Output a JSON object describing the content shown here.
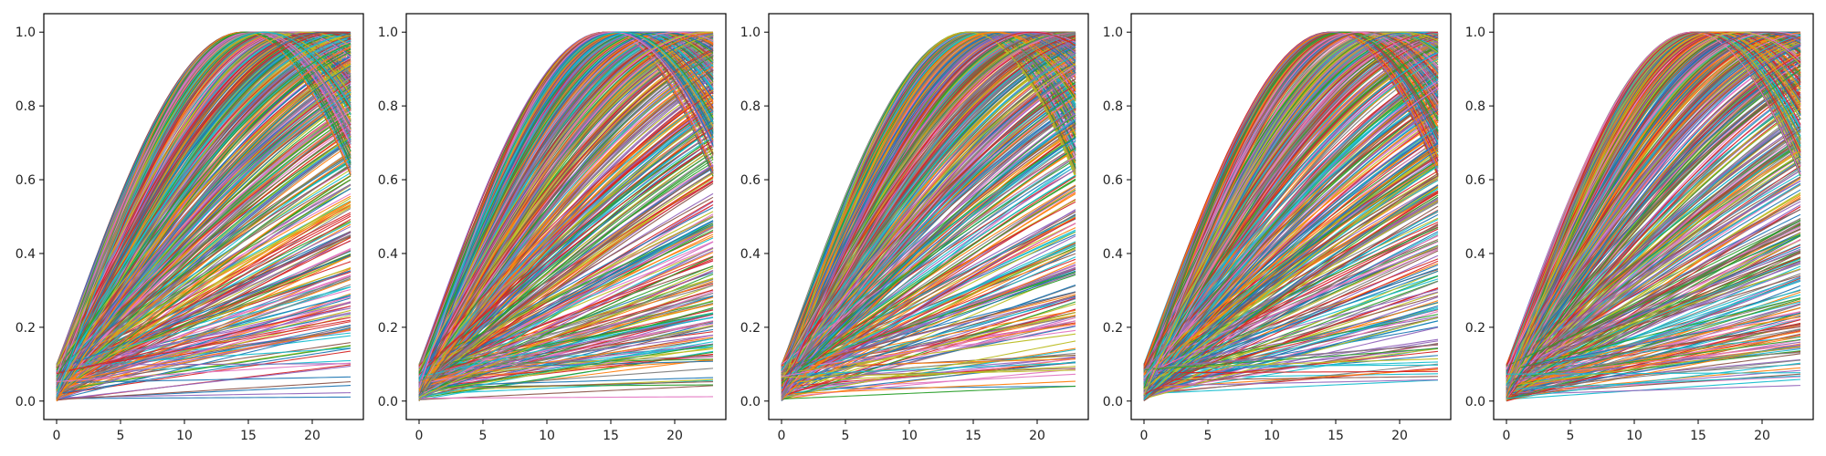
{
  "chart_data": {
    "type": "line",
    "panel_count": 5,
    "curve_model": "y = y0 + (1 - y0) * sin(min(pi/2 * x / peak_x, pi - ...)) ; many series per panel",
    "panels": [
      {
        "xlim": [
          -1,
          24
        ],
        "ylim": [
          -0.05,
          1.05
        ],
        "x_ticks": [
          0,
          5,
          10,
          15,
          20
        ],
        "x_tick_labels": [
          "0",
          "5",
          "10",
          "15",
          "20"
        ],
        "y_ticks": [
          0.0,
          0.2,
          0.4,
          0.6,
          0.8,
          1.0
        ],
        "y_tick_labels": [
          "0.0",
          "0.2",
          "0.4",
          "0.6",
          "0.8",
          "1.0"
        ],
        "x_range": [
          0,
          23
        ],
        "series_count": 600,
        "y_start_range": [
          0.0,
          0.1
        ],
        "min_peak_x": 14.5,
        "seed": 11
      },
      {
        "xlim": [
          -1,
          24
        ],
        "ylim": [
          -0.05,
          1.05
        ],
        "x_ticks": [
          0,
          5,
          10,
          15,
          20
        ],
        "x_tick_labels": [
          "0",
          "5",
          "10",
          "15",
          "20"
        ],
        "y_ticks": [
          0.0,
          0.2,
          0.4,
          0.6,
          0.8,
          1.0
        ],
        "y_tick_labels": [
          "0.0",
          "0.2",
          "0.4",
          "0.6",
          "0.8",
          "1.0"
        ],
        "x_range": [
          0,
          23
        ],
        "series_count": 600,
        "y_start_range": [
          0.0,
          0.1
        ],
        "min_peak_x": 14.5,
        "seed": 23
      },
      {
        "xlim": [
          -1,
          24
        ],
        "ylim": [
          -0.05,
          1.05
        ],
        "x_ticks": [
          0,
          5,
          10,
          15,
          20
        ],
        "x_tick_labels": [
          "0",
          "5",
          "10",
          "15",
          "20"
        ],
        "y_ticks": [
          0.0,
          0.2,
          0.4,
          0.6,
          0.8,
          1.0
        ],
        "y_tick_labels": [
          "0.0",
          "0.2",
          "0.4",
          "0.6",
          "0.8",
          "1.0"
        ],
        "x_range": [
          0,
          23
        ],
        "series_count": 600,
        "y_start_range": [
          0.0,
          0.1
        ],
        "min_peak_x": 14.5,
        "seed": 37
      },
      {
        "xlim": [
          -1,
          24
        ],
        "ylim": [
          -0.05,
          1.05
        ],
        "x_ticks": [
          0,
          5,
          10,
          15,
          20
        ],
        "x_tick_labels": [
          "0",
          "5",
          "10",
          "15",
          "20"
        ],
        "y_ticks": [
          0.0,
          0.2,
          0.4,
          0.6,
          0.8,
          1.0
        ],
        "y_tick_labels": [
          "0.0",
          "0.2",
          "0.4",
          "0.6",
          "0.8",
          "1.0"
        ],
        "x_range": [
          0,
          23
        ],
        "series_count": 600,
        "y_start_range": [
          0.0,
          0.1
        ],
        "min_peak_x": 14.5,
        "seed": 41
      },
      {
        "xlim": [
          -1,
          24
        ],
        "ylim": [
          -0.05,
          1.05
        ],
        "x_ticks": [
          0,
          5,
          10,
          15,
          20
        ],
        "x_tick_labels": [
          "0",
          "5",
          "10",
          "15",
          "20"
        ],
        "y_ticks": [
          0.0,
          0.2,
          0.4,
          0.6,
          0.8,
          1.0
        ],
        "y_tick_labels": [
          "0.0",
          "0.2",
          "0.4",
          "0.6",
          "0.8",
          "1.0"
        ],
        "x_range": [
          0,
          23
        ],
        "series_count": 600,
        "y_start_range": [
          0.0,
          0.1
        ],
        "min_peak_x": 14.5,
        "seed": 59
      }
    ],
    "palette": [
      "#1f77b4",
      "#ff7f0e",
      "#2ca02c",
      "#d62728",
      "#9467bd",
      "#8c564b",
      "#e377c2",
      "#7f7f7f",
      "#bcbd22",
      "#17becf"
    ],
    "grid": false,
    "legend": "none",
    "title": "",
    "xlabel": "",
    "ylabel": ""
  }
}
